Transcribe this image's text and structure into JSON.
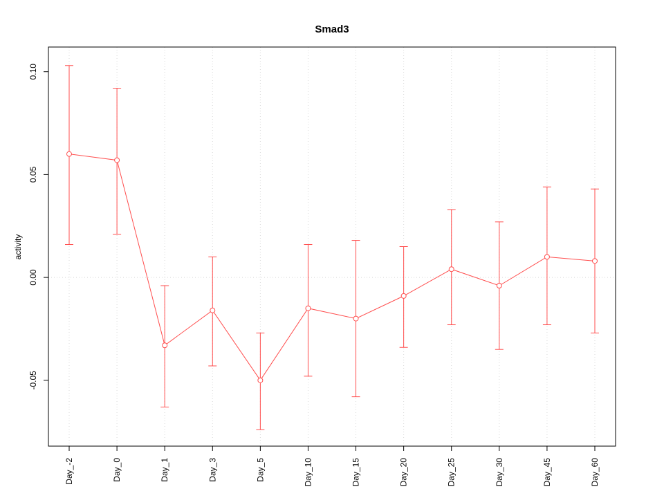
{
  "chart_data": {
    "type": "line",
    "title": "Smad3",
    "xlabel": "",
    "ylabel": "activity",
    "categories": [
      "Day_-2",
      "Day_0",
      "Day_1",
      "Day_3",
      "Day_5",
      "Day_10",
      "Day_15",
      "Day_20",
      "Day_25",
      "Day_30",
      "Day_45",
      "Day_60"
    ],
    "series": [
      {
        "name": "Smad3 activity",
        "values": [
          0.06,
          0.057,
          -0.033,
          -0.016,
          -0.05,
          -0.015,
          -0.02,
          -0.009,
          0.004,
          -0.004,
          0.01,
          0.008
        ],
        "upper": [
          0.103,
          0.092,
          -0.004,
          0.01,
          -0.027,
          0.016,
          0.018,
          0.015,
          0.033,
          0.027,
          0.044,
          0.043
        ],
        "lower": [
          0.016,
          0.021,
          -0.063,
          -0.043,
          -0.074,
          -0.048,
          -0.058,
          -0.034,
          -0.023,
          -0.035,
          -0.023,
          -0.027
        ]
      }
    ],
    "ylim": [
      -0.082,
      0.112
    ],
    "yticks": [
      -0.05,
      0.0,
      0.05,
      0.1
    ],
    "grid": true,
    "zero_line": true,
    "legend_position": "none",
    "colors": {
      "series": "#ff4d4d",
      "grid": "#d8d8d8",
      "axis": "#000000",
      "background": "#ffffff"
    }
  }
}
